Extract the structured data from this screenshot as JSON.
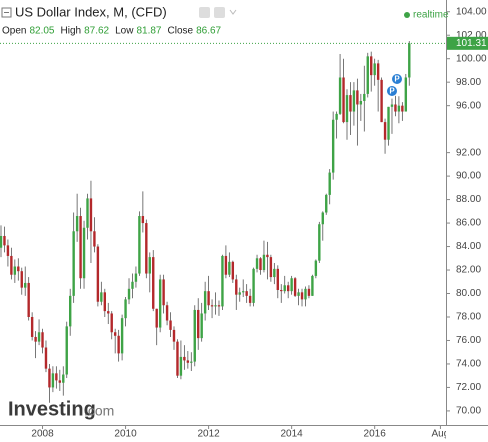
{
  "chart_data": {
    "type": "candlestick",
    "title": "US Dollar Index, M, (CFD)",
    "ohlc_legend": {
      "labels": [
        "Open",
        "High",
        "Low",
        "Close"
      ],
      "values": [
        82.05,
        87.62,
        81.87,
        86.67
      ]
    },
    "status": "realtime",
    "last_price": 101.31,
    "event_markers": [
      "P",
      "P"
    ],
    "watermark": {
      "brand": "Investing",
      "domain": ".com"
    },
    "up_color": "#3ea346",
    "down_color": "#b3282b",
    "open": [
      83.9,
      84.9,
      84.1,
      83.2,
      81.6,
      82.3,
      81.9,
      80.5,
      80.9,
      78.0,
      76.3,
      75.9,
      76.7,
      75.4,
      73.6,
      72.0,
      73.2,
      72.6,
      72.4,
      73.1,
      77.2,
      79.8,
      85.3,
      86.6,
      81.3,
      85.6,
      88.1,
      85.3,
      84.0,
      79.3,
      80.1,
      78.5,
      78.3,
      76.7,
      76.4,
      74.9,
      77.9,
      79.5,
      80.4,
      81.0,
      81.7,
      86.6,
      86.0,
      81.7,
      83.1,
      78.7,
      77.1,
      81.2,
      79.0,
      77.7,
      76.9,
      75.9,
      73.0,
      74.6,
      74.3,
      74.1,
      74.2,
      78.6,
      76.2,
      78.3,
      80.2,
      79.0,
      78.9,
      79.0,
      78.9,
      83.2,
      81.6,
      82.7,
      81.2,
      79.9,
      80.1,
      80.2,
      79.8,
      79.2,
      82.1,
      83.0,
      82.0,
      83.3,
      83.1,
      81.4,
      82.1,
      80.3,
      80.2,
      80.7,
      80.2,
      81.3,
      79.8,
      80.1,
      79.5,
      80.4,
      79.8,
      81.5,
      82.8,
      85.9,
      86.9,
      88.4,
      90.3,
      94.8,
      95.3,
      98.4,
      94.6,
      96.9,
      95.5,
      97.3,
      96.1,
      96.4,
      97.0,
      100.2,
      98.6,
      99.6,
      98.2,
      94.6,
      93.1,
      95.9,
      96.1,
      95.5,
      96.0,
      95.5,
      98.4
    ],
    "high": [
      85.8,
      85.7,
      84.6,
      83.9,
      82.9,
      83.0,
      82.2,
      82.3,
      81.4,
      78.4,
      76.8,
      77.8,
      77.0,
      76.0,
      74.0,
      73.8,
      73.8,
      73.5,
      73.8,
      77.6,
      80.4,
      86.9,
      88.5,
      87.3,
      86.2,
      88.5,
      89.6,
      86.5,
      84.2,
      81.0,
      80.4,
      79.2,
      78.5,
      77.0,
      76.9,
      78.2,
      79.7,
      81.3,
      81.7,
      82.3,
      87.0,
      88.7,
      86.3,
      83.5,
      83.7,
      78.7,
      81.6,
      81.6,
      79.3,
      78.4,
      77.2,
      76.1,
      76.0,
      75.6,
      75.1,
      75.0,
      79.0,
      79.6,
      79.2,
      81.0,
      81.5,
      79.5,
      80.1,
      79.4,
      83.3,
      84.1,
      83.5,
      82.8,
      81.6,
      80.5,
      81.2,
      80.8,
      80.4,
      82.2,
      83.3,
      83.1,
      84.5,
      84.4,
      83.3,
      82.6,
      82.4,
      80.8,
      81.5,
      81.0,
      81.5,
      81.4,
      80.4,
      80.4,
      80.6,
      80.7,
      81.6,
      82.9,
      86.1,
      87.0,
      88.5,
      90.6,
      95.5,
      95.5,
      100.4,
      100.0,
      97.4,
      98.0,
      98.0,
      98.3,
      97.0,
      99.4,
      100.5,
      100.6,
      100.0,
      99.9,
      98.4,
      94.9,
      95.9,
      96.6,
      97.0,
      96.8,
      96.3,
      98.7,
      101.5
    ],
    "low": [
      83.1,
      83.5,
      82.3,
      81.2,
      80.9,
      81.1,
      79.9,
      79.8,
      77.7,
      76.0,
      74.5,
      75.6,
      74.9,
      73.3,
      70.7,
      71.6,
      71.9,
      71.7,
      71.3,
      72.8,
      76.4,
      79.2,
      84.4,
      80.4,
      80.4,
      84.6,
      82.6,
      83.5,
      78.9,
      79.0,
      78.0,
      77.4,
      76.1,
      74.9,
      74.2,
      74.3,
      77.2,
      79.1,
      79.6,
      80.5,
      81.5,
      85.2,
      81.3,
      80.1,
      78.5,
      75.6,
      76.7,
      78.3,
      77.3,
      76.3,
      75.2,
      72.8,
      72.7,
      73.5,
      73.6,
      73.4,
      73.8,
      75.2,
      75.9,
      77.7,
      78.6,
      77.9,
      78.2,
      78.1,
      78.6,
      81.3,
      81.4,
      80.9,
      78.6,
      79.3,
      79.7,
      79.2,
      78.9,
      78.9,
      81.8,
      81.6,
      81.8,
      81.2,
      81.0,
      80.8,
      79.6,
      79.2,
      80.0,
      79.6,
      79.9,
      79.7,
      79.0,
      78.9,
      78.9,
      79.6,
      79.8,
      81.3,
      82.6,
      84.5,
      86.7,
      87.6,
      89.7,
      93.2,
      95.2,
      94.5,
      93.1,
      93.5,
      94.3,
      92.6,
      94.7,
      93.8,
      96.7,
      97.2,
      97.7,
      95.5,
      94.6,
      91.9,
      92.6,
      93.6,
      95.1,
      94.5,
      94.7,
      95.5,
      97.7
    ],
    "close": [
      84.9,
      84.1,
      83.2,
      81.6,
      82.3,
      81.9,
      80.5,
      80.9,
      78.0,
      76.3,
      75.9,
      76.7,
      75.4,
      73.6,
      72.0,
      73.2,
      72.6,
      72.4,
      73.1,
      77.2,
      79.8,
      85.3,
      86.6,
      81.3,
      85.6,
      88.1,
      85.3,
      84.0,
      79.3,
      80.1,
      78.5,
      78.3,
      76.7,
      76.4,
      74.9,
      77.9,
      79.5,
      80.4,
      81.0,
      81.7,
      86.6,
      86.0,
      81.7,
      83.1,
      78.7,
      77.1,
      81.2,
      79.0,
      77.7,
      76.9,
      75.9,
      73.0,
      74.6,
      74.3,
      74.1,
      74.2,
      78.6,
      76.2,
      78.3,
      80.2,
      79.0,
      78.9,
      79.0,
      78.9,
      83.2,
      81.6,
      82.7,
      81.2,
      79.9,
      80.1,
      80.2,
      79.8,
      79.2,
      82.1,
      83.0,
      82.0,
      83.3,
      83.1,
      81.4,
      82.1,
      80.3,
      80.2,
      80.7,
      80.2,
      81.3,
      79.8,
      80.1,
      79.5,
      80.4,
      79.8,
      81.5,
      82.8,
      85.9,
      86.9,
      88.4,
      90.3,
      94.8,
      95.3,
      98.4,
      94.6,
      96.9,
      95.5,
      97.3,
      96.1,
      96.4,
      97.0,
      100.2,
      98.6,
      99.6,
      98.2,
      94.6,
      93.1,
      95.9,
      96.1,
      95.5,
      96.0,
      95.5,
      98.4,
      101.3
    ],
    "xticks": [
      {
        "value": 12,
        "label": "2008"
      },
      {
        "value": 36,
        "label": "2010"
      },
      {
        "value": 60,
        "label": "2012"
      },
      {
        "value": 84,
        "label": "2014"
      },
      {
        "value": 108,
        "label": "2016"
      },
      {
        "value": 127,
        "label": "Aug"
      }
    ],
    "ylim": [
      68.8,
      105.0
    ],
    "yticks": [
      {
        "value": 70,
        "label": "70.00"
      },
      {
        "value": 72,
        "label": "72.00"
      },
      {
        "value": 74,
        "label": "74.00"
      },
      {
        "value": 76,
        "label": "76.00"
      },
      {
        "value": 78,
        "label": "78.00"
      },
      {
        "value": 80,
        "label": "80.00"
      },
      {
        "value": 82,
        "label": "82.00"
      },
      {
        "value": 84,
        "label": "84.00"
      },
      {
        "value": 86,
        "label": "86.00"
      },
      {
        "value": 88,
        "label": "88.00"
      },
      {
        "value": 90,
        "label": "90.00"
      },
      {
        "value": 92,
        "label": "92.00"
      },
      {
        "value": 96,
        "label": "96.00"
      },
      {
        "value": 98,
        "label": "98.00"
      },
      {
        "value": 100,
        "label": "100.00"
      },
      {
        "value": 102,
        "label": "102.00"
      },
      {
        "value": 104,
        "label": "104.00"
      }
    ]
  }
}
